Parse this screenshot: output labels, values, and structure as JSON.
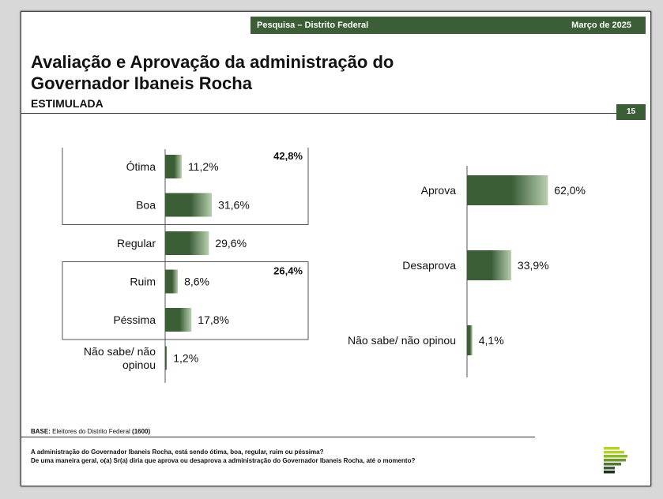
{
  "header": {
    "survey": "Pesquisa – Distrito Federal",
    "date": "Março de 2025"
  },
  "title_line1": "Avaliação e Aprovação da administração do",
  "title_line2": "Governador Ibaneis Rocha",
  "subtitle": "ESTIMULADA",
  "page_number": "15",
  "base": {
    "label": "BASE:",
    "text": " Eleitores do Distrito Federal ",
    "n": "(1600)"
  },
  "questions": [
    "A administração do Governador Ibaneis Rocha, está sendo ótima, boa, regular, ruim ou péssima?",
    "De uma maneira geral, o(a) Sr(a) diria que aprova ou desaprova a administração do Governador Ibaneis Rocha, até o momento?"
  ],
  "colors": {
    "bar_dark": "#3b5e36",
    "bar_light": "#b8cfae",
    "header_green": "#3b5e36"
  },
  "chart_data": [
    {
      "type": "bar",
      "orientation": "horizontal",
      "categories": [
        "Ótima",
        "Boa",
        "Regular",
        "Ruim",
        "Péssima",
        "Não sabe/ não|opinou"
      ],
      "values": [
        11.2,
        31.6,
        29.6,
        8.6,
        17.8,
        1.2
      ],
      "value_labels": [
        "11,2%",
        "31,6%",
        "29,6%",
        "8,6%",
        "17,8%",
        "1,2%"
      ],
      "groups": [
        {
          "label": "42,8%",
          "categories": [
            "Ótima",
            "Boa"
          ]
        },
        {
          "label": "26,4%",
          "categories": [
            "Ruim",
            "Péssima"
          ]
        }
      ]
    },
    {
      "type": "bar",
      "orientation": "horizontal",
      "categories": [
        "Aprova",
        "Desaprova",
        "Não sabe/ não opinou"
      ],
      "values": [
        62.0,
        33.9,
        4.1
      ],
      "value_labels": [
        "62,0%",
        "33,9%",
        "4,1%"
      ]
    }
  ]
}
